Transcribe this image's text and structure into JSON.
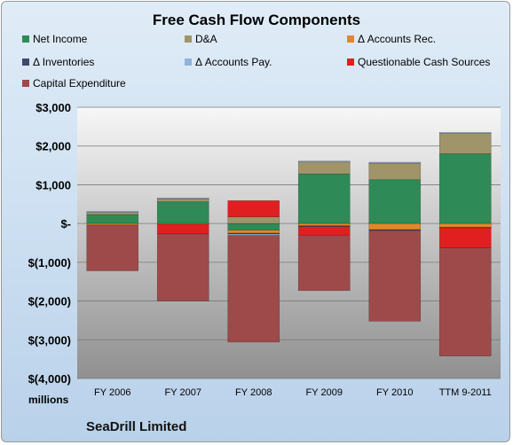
{
  "chart_data": {
    "type": "bar",
    "stacked": true,
    "title": "Free Cash Flow Components",
    "ylabel": "",
    "xlabel": "",
    "units_label": "millions",
    "company": "SeaDrill Limited",
    "categories": [
      "FY 2006",
      "FY 2007",
      "FY 2008",
      "FY 2009",
      "FY 2010",
      "TTM 9-2011"
    ],
    "ylim": [
      -4000,
      3000
    ],
    "yticks": [
      3000,
      2000,
      1000,
      0,
      -1000,
      -2000,
      -3000,
      -4000
    ],
    "ytick_labels": [
      "$3,000",
      "$2,000",
      "$1,000",
      "$-",
      "$(1,000)",
      "$(2,000)",
      "$(3,000)",
      "$(4,000)"
    ],
    "legend_position": "top",
    "series": [
      {
        "name": "Net Income",
        "color": "#2e8b57",
        "values": [
          230,
          560,
          -170,
          1280,
          1130,
          1800
        ]
      },
      {
        "name": "D&A",
        "color": "#a0946a",
        "values": [
          60,
          80,
          170,
          320,
          430,
          540
        ]
      },
      {
        "name": "Δ Accounts Rec.",
        "color": "#e0882a",
        "values": [
          -40,
          -20,
          -80,
          -60,
          -160,
          -100
        ]
      },
      {
        "name": "Δ Inventories",
        "color": "#3a4a6a",
        "values": [
          0,
          0,
          -20,
          -20,
          -20,
          -10
        ]
      },
      {
        "name": "Δ Accounts Pay.",
        "color": "#8fb3d9",
        "values": [
          20,
          20,
          -40,
          10,
          20,
          10
        ]
      },
      {
        "name": "Questionable Cash Sources",
        "color": "#e02020",
        "values": [
          0,
          -250,
          420,
          -220,
          0,
          -520
        ]
      },
      {
        "name": "Capital Expenditure",
        "color": "#9e4a4a",
        "values": [
          -1180,
          -1730,
          -2750,
          -1430,
          -2340,
          -2790
        ]
      }
    ]
  }
}
